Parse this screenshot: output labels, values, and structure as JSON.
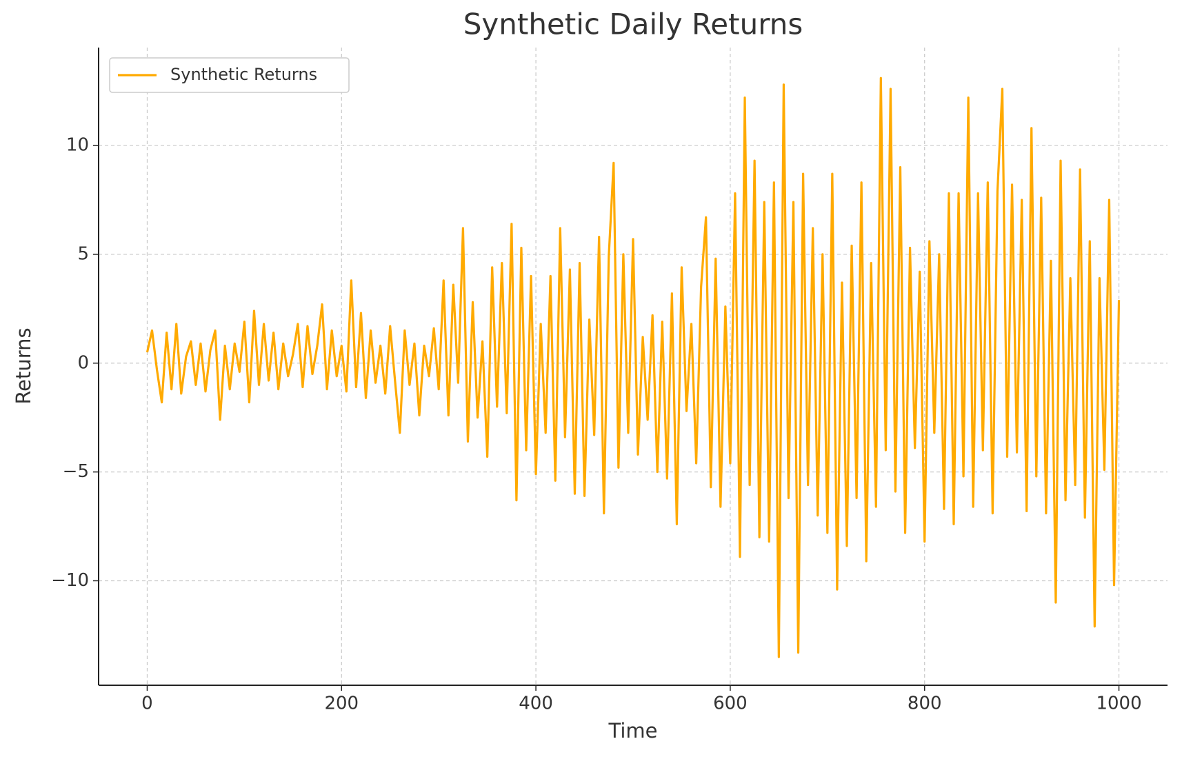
{
  "chart_data": {
    "type": "line",
    "title": "Synthetic Daily Returns",
    "x_label": "Time",
    "y_label": "Returns",
    "x": [
      0,
      5,
      10,
      15,
      20,
      25,
      30,
      35,
      40,
      45,
      50,
      55,
      60,
      65,
      70,
      75,
      80,
      85,
      90,
      95,
      100,
      105,
      110,
      115,
      120,
      125,
      130,
      135,
      140,
      145,
      150,
      155,
      160,
      165,
      170,
      175,
      180,
      185,
      190,
      195,
      200,
      205,
      210,
      215,
      220,
      225,
      230,
      235,
      240,
      245,
      250,
      255,
      260,
      265,
      270,
      275,
      280,
      285,
      290,
      295,
      300,
      305,
      310,
      315,
      320,
      325,
      330,
      335,
      340,
      345,
      350,
      355,
      360,
      365,
      370,
      375,
      380,
      385,
      390,
      395,
      400,
      405,
      410,
      415,
      420,
      425,
      430,
      435,
      440,
      445,
      450,
      455,
      460,
      465,
      470,
      475,
      480,
      485,
      490,
      495,
      500,
      505,
      510,
      515,
      520,
      525,
      530,
      535,
      540,
      545,
      550,
      555,
      560,
      565,
      570,
      575,
      580,
      585,
      590,
      595,
      600,
      605,
      610,
      615,
      620,
      625,
      630,
      635,
      640,
      645,
      650,
      655,
      660,
      665,
      670,
      675,
      680,
      685,
      690,
      695,
      700,
      705,
      710,
      715,
      720,
      725,
      730,
      735,
      740,
      745,
      750,
      755,
      760,
      765,
      770,
      775,
      780,
      785,
      790,
      795,
      800,
      805,
      810,
      815,
      820,
      825,
      830,
      835,
      840,
      845,
      850,
      855,
      860,
      865,
      870,
      875,
      880,
      885,
      890,
      895,
      900,
      905,
      910,
      915,
      920,
      925,
      930,
      935,
      940,
      945,
      950,
      955,
      960,
      965,
      970,
      975,
      980,
      985,
      990,
      995,
      1000
    ],
    "series": [
      {
        "name": "Synthetic Returns",
        "color": "#ffaa00",
        "values": [
          0.5,
          1.5,
          -0.3,
          -1.8,
          1.4,
          -1.2,
          1.8,
          -1.4,
          0.3,
          1.0,
          -1.0,
          0.9,
          -1.3,
          0.6,
          1.5,
          -2.6,
          0.8,
          -1.2,
          0.9,
          -0.4,
          1.9,
          -1.8,
          2.4,
          -1.0,
          1.8,
          -0.8,
          1.4,
          -1.2,
          0.9,
          -0.6,
          0.4,
          1.8,
          -1.1,
          1.7,
          -0.5,
          0.8,
          2.7,
          -1.2,
          1.5,
          -0.6,
          0.8,
          -1.3,
          3.8,
          -1.1,
          2.3,
          -1.6,
          1.5,
          -0.9,
          0.8,
          -1.4,
          1.7,
          -0.8,
          -3.2,
          1.5,
          -1.0,
          0.9,
          -2.4,
          0.8,
          -0.6,
          1.6,
          -1.2,
          3.8,
          -2.4,
          3.6,
          -0.9,
          6.2,
          -3.6,
          2.8,
          -2.5,
          1.0,
          -4.3,
          4.4,
          -2.0,
          4.6,
          -2.3,
          6.4,
          -6.3,
          5.3,
          -4.0,
          4.0,
          -5.1,
          1.8,
          -3.2,
          4.0,
          -5.4,
          6.2,
          -3.4,
          4.3,
          -6.0,
          4.6,
          -6.1,
          2.0,
          -3.3,
          5.8,
          -6.9,
          4.9,
          9.2,
          -4.8,
          5.0,
          -3.2,
          5.7,
          -4.2,
          1.2,
          -2.6,
          2.2,
          -5.0,
          1.9,
          -5.3,
          3.2,
          -7.4,
          4.4,
          -2.2,
          1.8,
          -4.6,
          3.5,
          6.7,
          -5.7,
          4.8,
          -6.6,
          2.6,
          -4.6,
          7.8,
          -8.9,
          12.2,
          -5.6,
          9.3,
          -8.0,
          7.4,
          -8.2,
          8.3,
          -13.5,
          12.8,
          -6.2,
          7.4,
          -13.3,
          8.7,
          -5.6,
          6.2,
          -7.0,
          5.0,
          -7.8,
          8.7,
          -10.4,
          3.7,
          -8.4,
          5.4,
          -6.2,
          8.3,
          -9.1,
          4.6,
          -6.6,
          13.1,
          -4.0,
          12.6,
          -5.9,
          9.0,
          -7.8,
          5.3,
          -3.9,
          4.2,
          -8.2,
          5.6,
          -3.2,
          5.0,
          -6.7,
          7.8,
          -7.4,
          7.8,
          -5.2,
          12.2,
          -6.6,
          7.8,
          -4.0,
          8.3,
          -6.9,
          7.9,
          12.6,
          -4.3,
          8.2,
          -4.1,
          7.5,
          -6.8,
          10.8,
          -5.2,
          7.6,
          -6.9,
          4.7,
          -11.0,
          9.3,
          -6.3,
          3.9,
          -5.6,
          8.9,
          -7.1,
          5.6,
          -12.1,
          3.9,
          -4.9,
          7.5,
          -10.2,
          2.9
        ]
      }
    ],
    "xlim": [
      -50,
      1050
    ],
    "xticks": [
      0,
      200,
      400,
      600,
      800,
      1000
    ],
    "ylim": [
      -14.8,
      14.5
    ],
    "yticks": [
      {
        "value": -10,
        "label": "−10"
      },
      {
        "value": -5,
        "label": "−5"
      },
      0,
      5,
      10
    ],
    "grid": true,
    "legend": "upper left"
  }
}
